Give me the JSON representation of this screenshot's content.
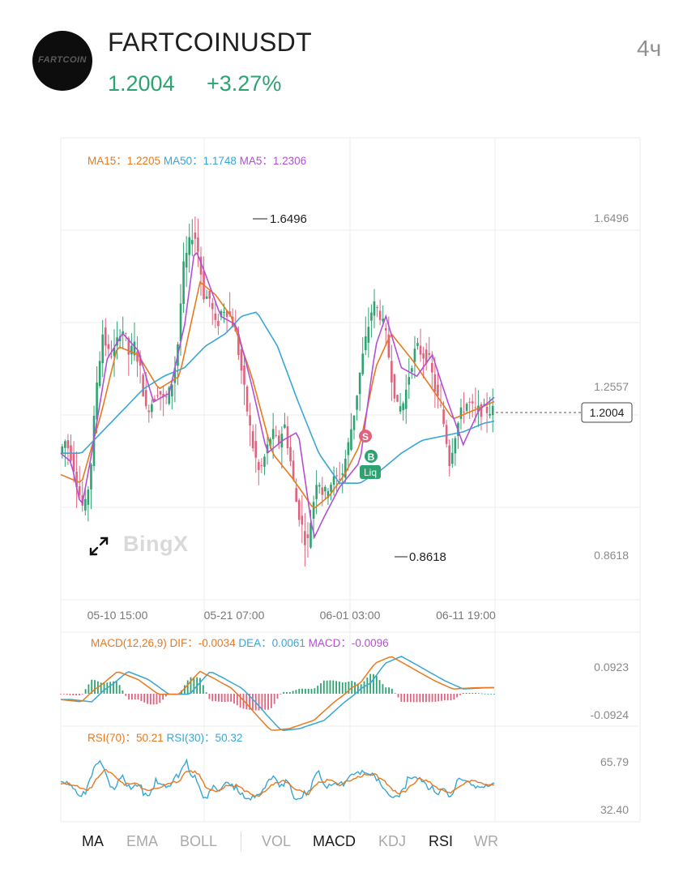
{
  "header": {
    "logo_text": "FARTCOIN",
    "symbol": "FARTCOINUSDT",
    "price": "1.2004",
    "change": "+3.27%",
    "interval": "4ч"
  },
  "watermark": "BingX",
  "colors": {
    "up": "#2ea371",
    "down": "#e0637e",
    "ma15": "#e8791e",
    "ma50": "#38a6d6",
    "ma5": "#b34fd6",
    "grid": "#eeeeee",
    "axis_text": "#8a8a8a"
  },
  "legends": {
    "main": [
      {
        "label": "MA15",
        "sep": "：",
        "value": "1.2205",
        "color": "#e8791e"
      },
      {
        "label": "MA50",
        "sep": "：",
        "value": "1.1748",
        "color": "#38a6d6"
      },
      {
        "label": "MA5",
        "sep": "：",
        "value": "1.2306",
        "color": "#b34fd6"
      }
    ],
    "macd": [
      {
        "label": "MACD(12,26,9)",
        "sep": "",
        "value": "",
        "color": "#e8791e"
      },
      {
        "label": "DIF",
        "sep": "：",
        "value": "-0.0034",
        "color": "#e8791e"
      },
      {
        "label": "DEA",
        "sep": "：",
        "value": "0.0061",
        "color": "#38a6d6"
      },
      {
        "label": "MACD",
        "sep": "：",
        "value": "-0.0096",
        "color": "#b34fd6"
      }
    ],
    "rsi": [
      {
        "label": "RSI(70)",
        "sep": "：",
        "value": "50.21",
        "color": "#e8791e"
      },
      {
        "label": "RSI(30)",
        "sep": "：",
        "value": "50.32",
        "color": "#38a6d6"
      }
    ]
  },
  "axes": {
    "price_labels": [
      "1.6496",
      "1.2557",
      "0.8618"
    ],
    "price_values": [
      1.6496,
      1.2557,
      0.8618
    ],
    "current_price": "1.2004",
    "current_price_value": 1.2004,
    "high_marker": "1.6496",
    "low_marker": "0.8618",
    "time_labels": [
      "05-10 15:00",
      "05-21 07:00",
      "06-01 03:00",
      "06-11 19:00"
    ],
    "macd_labels": [
      "0.0923",
      "-0.0924"
    ],
    "rsi_labels": [
      "65.79",
      "32.40"
    ]
  },
  "markers": [
    {
      "text": "S",
      "color": "#e0637e"
    },
    {
      "text": "B",
      "color": "#2ea371"
    },
    {
      "text": "Liq",
      "color": "#2ea371"
    }
  ],
  "tabs": [
    {
      "label": "MA",
      "active": true
    },
    {
      "label": "EMA",
      "active": false
    },
    {
      "label": "BOLL",
      "active": false
    },
    {
      "label": "VOL",
      "active": false
    },
    {
      "label": "MACD",
      "active": true
    },
    {
      "label": "KDJ",
      "active": false
    },
    {
      "label": "RSI",
      "active": true
    },
    {
      "label": "WR",
      "active": false
    }
  ],
  "chart_data": {
    "type": "line",
    "title": "FARTCOINUSDT",
    "interval": "4ч",
    "x": [
      "05-10 15:00",
      "05-21 07:00",
      "06-01 03:00",
      "06-11 19:00"
    ],
    "ylim": [
      0.8618,
      1.6496
    ],
    "grid": true,
    "series": [
      {
        "name": "Price",
        "x": [
          0,
          6,
          12,
          18,
          24,
          30,
          36,
          42,
          48,
          54,
          60,
          64,
          66,
          68,
          72,
          78,
          84,
          90,
          96,
          102,
          108,
          114,
          120,
          126,
          130,
          134,
          140,
          146,
          152,
          158,
          164,
          170,
          176,
          182,
          188,
          194,
          200,
          206,
          212,
          218,
          224,
          230,
          236,
          240,
          244,
          250,
          256,
          262,
          268,
          274,
          280,
          286,
          292,
          298,
          304,
          310,
          316,
          322,
          328,
          334,
          340,
          346,
          352,
          358,
          364,
          370,
          374,
          378,
          384,
          390,
          396,
          402,
          408,
          414,
          420
        ],
        "values": [
          1.1,
          1.13,
          1.09,
          1.02,
          0.96,
          1.05,
          1.26,
          1.38,
          1.33,
          1.34,
          1.4,
          1.37,
          1.35,
          1.32,
          1.36,
          1.3,
          1.2,
          1.22,
          1.25,
          1.22,
          1.25,
          1.33,
          1.53,
          1.59,
          1.62,
          1.58,
          1.47,
          1.46,
          1.39,
          1.44,
          1.43,
          1.39,
          1.3,
          1.2,
          1.11,
          1.05,
          1.1,
          1.15,
          1.12,
          1.17,
          1.08,
          0.98,
          0.92,
          0.88,
          0.95,
          1.05,
          1.0,
          1.03,
          1.04,
          1.05,
          1.12,
          1.2,
          1.3,
          1.38,
          1.45,
          1.43,
          1.38,
          1.28,
          1.2,
          1.22,
          1.3,
          1.35,
          1.33,
          1.32,
          1.25,
          1.2,
          1.15,
          1.08,
          1.15,
          1.2,
          1.22,
          1.2,
          1.2,
          1.2,
          1.2004
        ]
      },
      {
        "name": "MA15",
        "x": [
          0,
          20,
          40,
          55,
          75,
          95,
          115,
          135,
          150,
          165,
          185,
          205,
          225,
          245,
          260,
          275,
          290,
          305,
          320,
          340,
          360,
          380,
          400,
          420
        ],
        "values": [
          1.05,
          1.03,
          1.2,
          1.35,
          1.33,
          1.25,
          1.28,
          1.5,
          1.47,
          1.42,
          1.28,
          1.1,
          1.04,
          0.97,
          1.0,
          1.05,
          1.12,
          1.3,
          1.38,
          1.32,
          1.25,
          1.18,
          1.2,
          1.2205
        ]
      },
      {
        "name": "MA50",
        "x": [
          0,
          20,
          40,
          60,
          80,
          100,
          120,
          140,
          160,
          175,
          190,
          210,
          230,
          250,
          270,
          290,
          310,
          330,
          350,
          370,
          390,
          410,
          420
        ],
        "values": [
          1.1,
          1.1,
          1.15,
          1.2,
          1.25,
          1.28,
          1.3,
          1.35,
          1.38,
          1.42,
          1.43,
          1.35,
          1.22,
          1.1,
          1.03,
          1.03,
          1.06,
          1.1,
          1.13,
          1.14,
          1.15,
          1.17,
          1.1748
        ]
      },
      {
        "name": "MA5",
        "x": [
          0,
          10,
          20,
          30,
          45,
          60,
          75,
          90,
          105,
          120,
          130,
          140,
          155,
          170,
          185,
          200,
          215,
          230,
          245,
          255,
          270,
          290,
          305,
          315,
          330,
          345,
          360,
          375,
          390,
          405,
          420
        ],
        "values": [
          1.1,
          1.08,
          0.97,
          1.1,
          1.32,
          1.38,
          1.34,
          1.22,
          1.24,
          1.4,
          1.58,
          1.52,
          1.42,
          1.4,
          1.26,
          1.1,
          1.13,
          1.15,
          0.9,
          0.95,
          1.02,
          1.08,
          1.35,
          1.42,
          1.3,
          1.28,
          1.33,
          1.22,
          1.12,
          1.2,
          1.2306
        ]
      }
    ]
  }
}
